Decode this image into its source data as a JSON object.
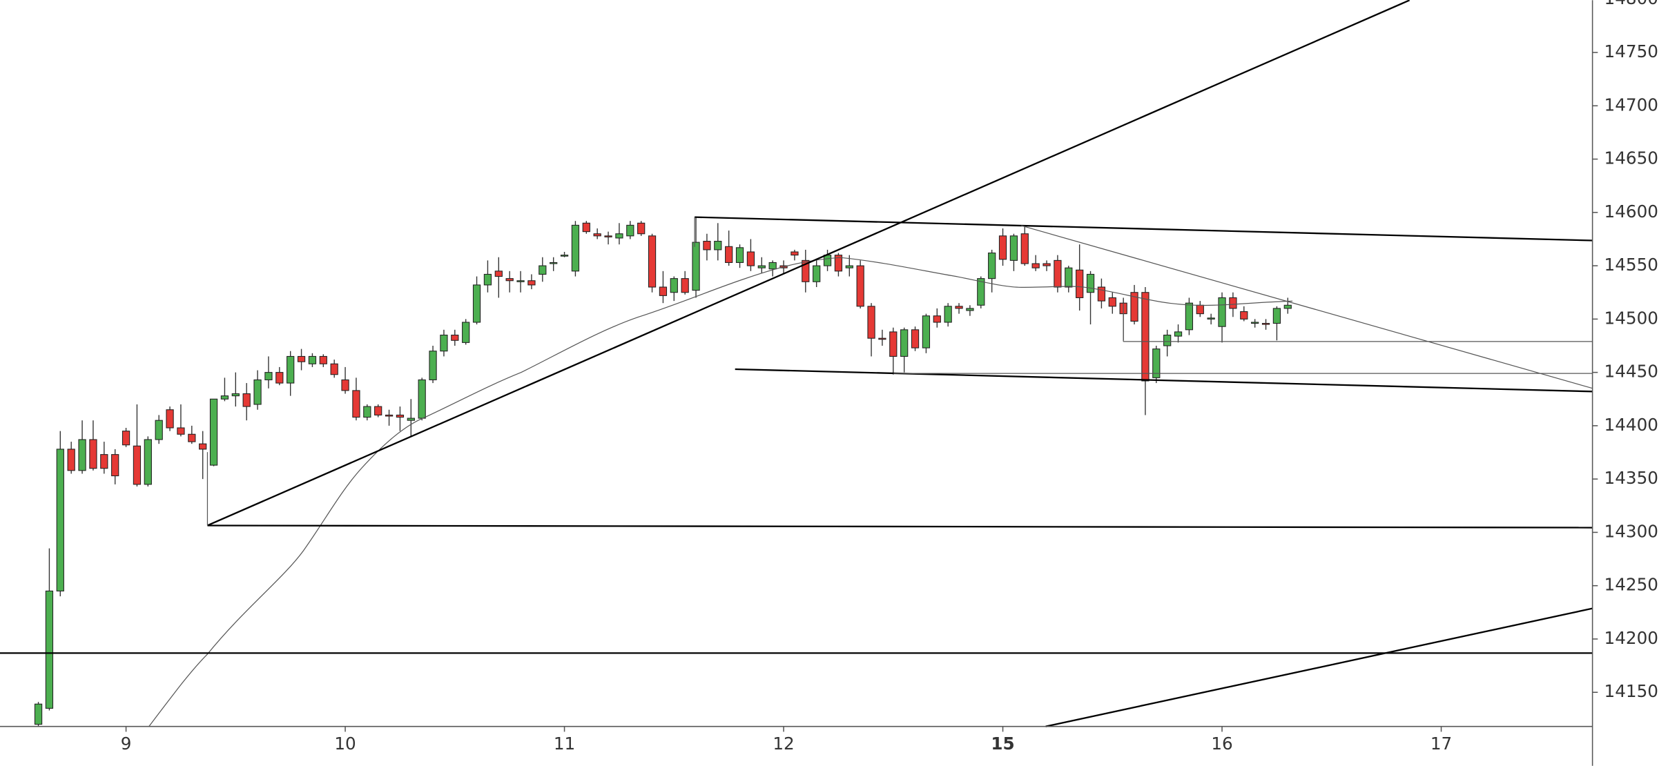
{
  "chart_data": {
    "type": "candlestick",
    "x": [
      0,
      1,
      2,
      3,
      4,
      5,
      6,
      7,
      8,
      9,
      10,
      11,
      12,
      13,
      14,
      15,
      16,
      17,
      18,
      19,
      20,
      21,
      22,
      23,
      24,
      25,
      26,
      27,
      28,
      29,
      30,
      31,
      32,
      33,
      34,
      35,
      36,
      37,
      38,
      39,
      40,
      41,
      42,
      43,
      44,
      45,
      46,
      47,
      48,
      49,
      50,
      51,
      52,
      53,
      54,
      55,
      56,
      57,
      58,
      59,
      60,
      61,
      62,
      63,
      64,
      65,
      66,
      67,
      68,
      69,
      70,
      71,
      72,
      73,
      74,
      75,
      76,
      77,
      78,
      79,
      80,
      81,
      82,
      83,
      84,
      85,
      86,
      87,
      88,
      89,
      90,
      91,
      92,
      93,
      94,
      95,
      96,
      97,
      98,
      99,
      100,
      101,
      102,
      103,
      104,
      105,
      106,
      107,
      108,
      109,
      110,
      111,
      112,
      113,
      114
    ],
    "open": [
      14120,
      14135,
      14245,
      14378,
      14358,
      14387,
      14373,
      14373,
      14395,
      14381,
      14345,
      14387,
      14415,
      14398,
      14392,
      14383,
      14363,
      14425,
      14428,
      14430,
      14420,
      14443,
      14450,
      14440,
      14465,
      14458,
      14465,
      14458,
      14443,
      14433,
      14408,
      14418,
      14410,
      14410,
      14405,
      14407,
      14443,
      14470,
      14485,
      14478,
      14497,
      14532,
      14545,
      14538,
      14535,
      14536,
      14542,
      14552,
      14560,
      14545,
      14590,
      14580,
      14578,
      14576,
      14578,
      14590,
      14578,
      14530,
      14525,
      14538,
      14527,
      14573,
      14565,
      14568,
      14553,
      14563,
      14548,
      14547,
      14550,
      14563,
      14555,
      14535,
      14550,
      14560,
      14548,
      14550,
      14512,
      14482,
      14488,
      14465,
      14490,
      14473,
      14503,
      14497,
      14512,
      14508,
      14513,
      14538,
      14578,
      14555,
      14580,
      14552,
      14552,
      14555,
      14530,
      14546,
      14525,
      14530,
      14520,
      14515,
      14525,
      14525,
      14445,
      14475,
      14484,
      14490,
      14513,
      14500,
      14493,
      14520,
      14507,
      14497,
      14496,
      14496,
      14510
    ],
    "high": [
      14141,
      14285,
      14395,
      14385,
      14405,
      14405,
      14385,
      14378,
      14398,
      14420,
      14390,
      14410,
      14418,
      14420,
      14400,
      14395,
      14425,
      14445,
      14450,
      14440,
      14452,
      14465,
      14455,
      14470,
      14472,
      14468,
      14467,
      14462,
      14455,
      14445,
      14420,
      14420,
      14415,
      14418,
      14425,
      14445,
      14475,
      14490,
      14490,
      14500,
      14540,
      14555,
      14558,
      14545,
      14545,
      14542,
      14558,
      14558,
      14563,
      14592,
      14592,
      14585,
      14582,
      14590,
      14592,
      14592,
      14580,
      14545,
      14540,
      14545,
      14595,
      14580,
      14590,
      14583,
      14570,
      14575,
      14558,
      14555,
      14555,
      14565,
      14565,
      14555,
      14565,
      14562,
      14560,
      14555,
      14515,
      14490,
      14492,
      14492,
      14493,
      14505,
      14510,
      14515,
      14515,
      14513,
      14540,
      14565,
      14585,
      14580,
      14588,
      14560,
      14555,
      14560,
      14550,
      14570,
      14545,
      14538,
      14525,
      14520,
      14532,
      14530,
      14475,
      14490,
      14495,
      14520,
      14517,
      14505,
      14525,
      14525,
      14512,
      14500,
      14500,
      14512,
      14520
    ],
    "low": [
      14118,
      14133,
      14240,
      14355,
      14355,
      14358,
      14355,
      14345,
      14380,
      14343,
      14343,
      14383,
      14395,
      14390,
      14383,
      14350,
      14362,
      14423,
      14418,
      14405,
      14415,
      14435,
      14438,
      14428,
      14452,
      14455,
      14455,
      14445,
      14430,
      14405,
      14405,
      14408,
      14400,
      14395,
      14390,
      14405,
      14440,
      14465,
      14475,
      14476,
      14495,
      14525,
      14520,
      14525,
      14525,
      14528,
      14535,
      14545,
      14558,
      14540,
      14580,
      14575,
      14570,
      14570,
      14575,
      14578,
      14525,
      14515,
      14517,
      14523,
      14520,
      14555,
      14555,
      14550,
      14548,
      14545,
      14543,
      14540,
      14542,
      14555,
      14525,
      14530,
      14545,
      14540,
      14540,
      14510,
      14465,
      14475,
      14448,
      14450,
      14470,
      14468,
      14492,
      14493,
      14505,
      14503,
      14510,
      14525,
      14550,
      14545,
      14550,
      14545,
      14545,
      14525,
      14525,
      14508,
      14495,
      14510,
      14505,
      14480,
      14495,
      14410,
      14440,
      14465,
      14478,
      14485,
      14502,
      14495,
      14478,
      14502,
      14498,
      14492,
      14490,
      14480,
      14505
    ],
    "close": [
      14139,
      14245,
      14378,
      14358,
      14387,
      14360,
      14360,
      14353,
      14382,
      14345,
      14387,
      14405,
      14398,
      14392,
      14385,
      14378,
      14425,
      14428,
      14430,
      14418,
      14443,
      14450,
      14440,
      14465,
      14460,
      14465,
      14458,
      14448,
      14433,
      14408,
      14418,
      14410,
      14409,
      14408,
      14407,
      14443,
      14470,
      14485,
      14480,
      14497,
      14532,
      14542,
      14540,
      14536,
      14536,
      14532,
      14550,
      14553,
      14560,
      14588,
      14582,
      14578,
      14577,
      14580,
      14588,
      14580,
      14530,
      14522,
      14538,
      14525,
      14572,
      14565,
      14573,
      14553,
      14567,
      14550,
      14550,
      14553,
      14548,
      14560,
      14535,
      14550,
      14560,
      14545,
      14550,
      14512,
      14482,
      14481,
      14465,
      14490,
      14473,
      14503,
      14497,
      14512,
      14510,
      14510,
      14538,
      14562,
      14556,
      14578,
      14552,
      14548,
      14550,
      14530,
      14548,
      14520,
      14542,
      14517,
      14512,
      14505,
      14498,
      14442,
      14472,
      14485,
      14488,
      14515,
      14505,
      14501,
      14520,
      14510,
      14500,
      14497,
      14495,
      14510,
      14513
    ],
    "up_color": "#4caf50",
    "down_color": "#e53935",
    "xlim": [
      -3.5,
      141.8
    ],
    "xticks": [
      {
        "value": 8,
        "label": "9"
      },
      {
        "value": 28,
        "label": "10"
      },
      {
        "value": 48,
        "label": "11"
      },
      {
        "value": 68,
        "label": "12"
      },
      {
        "value": 88,
        "label": "15"
      },
      {
        "value": 108,
        "label": "16"
      },
      {
        "value": 128,
        "label": "17"
      }
    ],
    "ylim": [
      14118,
      14800
    ],
    "yticks": [
      14150,
      14200,
      14250,
      14300,
      14350,
      14400,
      14450,
      14500,
      14550,
      14600,
      14650,
      14700,
      14750,
      14800
    ]
  }
}
